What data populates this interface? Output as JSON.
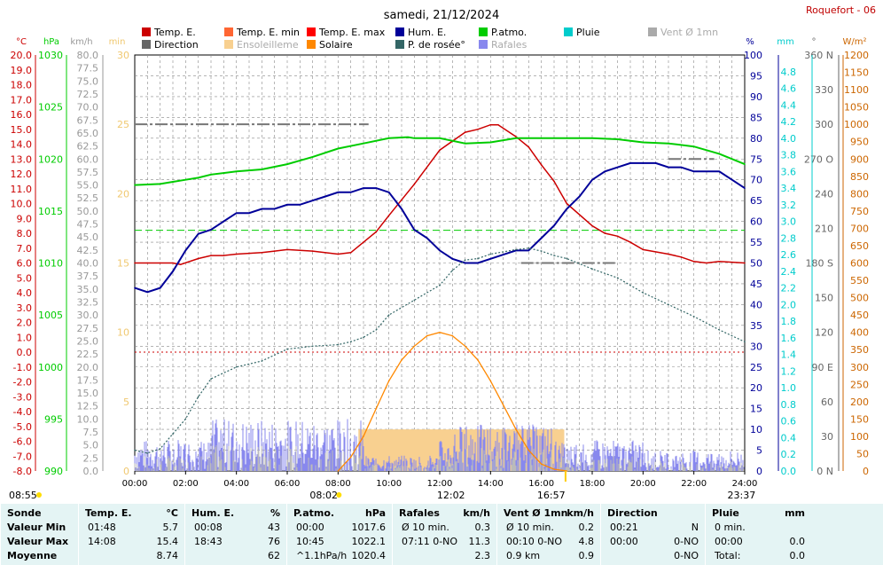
{
  "site_label": "Roquefort - 06",
  "chart_data": {
    "type": "line",
    "title": "samedi, 21/12/2024",
    "x_ticks": [
      "00:00",
      "02:00",
      "04:00",
      "06:00",
      "08:00",
      "10:00",
      "12:00",
      "14:00",
      "16:00",
      "18:00",
      "20:00",
      "22:00",
      "24:00"
    ],
    "x_range_hours": [
      0,
      24
    ],
    "grid": true,
    "axes": {
      "temp": {
        "unit": "°C",
        "color": "#cc0000",
        "range": [
          -8,
          20
        ],
        "ticks": [
          "20.0",
          "19.0",
          "18.0",
          "17.0",
          "16.0",
          "15.0",
          "14.0",
          "13.0",
          "12.0",
          "11.0",
          "10.0",
          "9.0",
          "8.0",
          "7.0",
          "6.0",
          "5.0",
          "4.0",
          "3.0",
          "2.0",
          "1.0",
          "0.0",
          "-1.0",
          "-2.0",
          "-3.0",
          "-4.0",
          "-5.0",
          "-6.0",
          "-7.0",
          "-8.0"
        ]
      },
      "pressure": {
        "unit": "hPa",
        "color": "#00cc00",
        "range": [
          990,
          1030
        ],
        "ticks": [
          "1030",
          "1025",
          "1020",
          "1015",
          "1010",
          "1005",
          "1000",
          "995",
          "990"
        ]
      },
      "wind": {
        "unit": "km/h",
        "color": "#999999",
        "range": [
          0,
          80
        ],
        "ticks": [
          "80.0",
          "77.5",
          "75.0",
          "72.5",
          "70.0",
          "67.5",
          "65.0",
          "62.5",
          "60.0",
          "57.5",
          "55.0",
          "52.5",
          "50.0",
          "47.5",
          "45.0",
          "42.5",
          "40.0",
          "37.5",
          "35.0",
          "32.5",
          "30.0",
          "27.5",
          "25.0",
          "22.5",
          "20.0",
          "17.5",
          "15.0",
          "12.5",
          "10.0",
          "7.5",
          "5.0",
          "2.5",
          "0.0"
        ]
      },
      "sun_min": {
        "unit": "min",
        "color": "#f0c870",
        "range": [
          0,
          30
        ],
        "ticks": [
          "30",
          "25",
          "20",
          "15",
          "10",
          "5",
          "0"
        ]
      },
      "humidity": {
        "unit": "%",
        "color": "#000099",
        "range": [
          0,
          100
        ],
        "ticks": [
          "100",
          "95",
          "90",
          "85",
          "80",
          "75",
          "70",
          "65",
          "60",
          "55",
          "50",
          "45",
          "40",
          "35",
          "30",
          "25",
          "20",
          "15",
          "10",
          "5",
          "0"
        ]
      },
      "rain": {
        "unit": "mm",
        "color": "#00cccc",
        "range": [
          0,
          5
        ],
        "ticks": [
          "4.8",
          "4.6",
          "4.4",
          "4.2",
          "4.0",
          "3.8",
          "3.6",
          "3.4",
          "3.2",
          "3.0",
          "2.8",
          "2.6",
          "2.4",
          "2.2",
          "2.0",
          "1.8",
          "1.6",
          "1.4",
          "1.2",
          "1.0",
          "0.8",
          "0.6",
          "0.4",
          "0.2",
          "0.0"
        ]
      },
      "direction": {
        "unit": "°",
        "color": "#666666",
        "range": [
          0,
          360
        ],
        "ticks": [
          "360 N",
          "330",
          "300",
          "270 O",
          "240",
          "210",
          "180 S",
          "150",
          "120",
          "90 E",
          "60",
          "30",
          "0 N"
        ]
      },
      "solar": {
        "unit": "W/m²",
        "color": "#cc6600",
        "range": [
          0,
          1200
        ],
        "ticks": [
          "1200",
          "1150",
          "1100",
          "1050",
          "1000",
          "950",
          "900",
          "850",
          "800",
          "750",
          "700",
          "650",
          "600",
          "550",
          "500",
          "450",
          "400",
          "350",
          "300",
          "250",
          "200",
          "150",
          "100",
          "50",
          "0"
        ]
      }
    },
    "legend": [
      {
        "label": "Temp. E.",
        "color": "#cc0000"
      },
      {
        "label": "Temp. E. min",
        "color": "#ff6633"
      },
      {
        "label": "Temp. E. max",
        "color": "#ff0000"
      },
      {
        "label": "Hum. E.",
        "color": "#000099"
      },
      {
        "label": "P.atmo.",
        "color": "#00cc00"
      },
      {
        "label": "Pluie",
        "color": "#00cccc"
      },
      {
        "label": "Vent Ø 1mn",
        "color": "#aaaaaa"
      },
      {
        "label": "Direction",
        "color": "#666666"
      },
      {
        "label": "Ensoleilleme",
        "color": "#f8d090"
      },
      {
        "label": "Solaire",
        "color": "#ff8800"
      },
      {
        "label": "P. de rosée°",
        "color": "#336666"
      },
      {
        "label": "Rafales",
        "color": "#8888ee"
      }
    ],
    "series": [
      {
        "name": "Temp. E.",
        "axis": "temp",
        "color": "#cc0000",
        "x": [
          0,
          0.5,
          1,
          1.5,
          1.8,
          2.5,
          3,
          3.5,
          4,
          5,
          5.5,
          6,
          7,
          8,
          8.5,
          9,
          9.5,
          10,
          11,
          12,
          13,
          13.5,
          14,
          14.3,
          15,
          15.5,
          16,
          16.5,
          17,
          18,
          18.5,
          19,
          19.5,
          20,
          21,
          21.5,
          22,
          22.5,
          23,
          24
        ],
        "y": [
          6.0,
          6.0,
          6.0,
          6.0,
          5.9,
          6.3,
          6.5,
          6.5,
          6.6,
          6.7,
          6.8,
          6.9,
          6.8,
          6.6,
          6.7,
          7.4,
          8.1,
          9.2,
          11.3,
          13.6,
          14.8,
          15.0,
          15.3,
          15.3,
          14.5,
          13.8,
          12.6,
          11.5,
          10.0,
          8.5,
          8.0,
          7.8,
          7.4,
          6.9,
          6.6,
          6.4,
          6.1,
          6.0,
          6.1,
          6.0
        ]
      },
      {
        "name": "Hum. E.",
        "axis": "humidity",
        "color": "#000099",
        "x": [
          0,
          0.5,
          1,
          1.5,
          2,
          2.5,
          3,
          3.5,
          4,
          4.5,
          5,
          5.5,
          6,
          6.5,
          7,
          7.5,
          8,
          8.5,
          9,
          9.5,
          10,
          10.5,
          11,
          11.5,
          12,
          12.5,
          13,
          13.5,
          14,
          14.5,
          15,
          15.5,
          16,
          16.5,
          17,
          17.5,
          18,
          18.5,
          19,
          19.5,
          20,
          20.5,
          21,
          21.5,
          22,
          22.5,
          23,
          23.5,
          24
        ],
        "y": [
          44,
          43,
          44,
          48,
          53,
          57,
          58,
          60,
          62,
          62,
          63,
          63,
          64,
          64,
          65,
          66,
          67,
          67,
          68,
          68,
          67,
          63,
          58,
          56,
          53,
          51,
          50,
          50,
          51,
          52,
          53,
          53,
          56,
          59,
          63,
          66,
          70,
          72,
          73,
          74,
          74,
          74,
          73,
          73,
          72,
          72,
          72,
          70,
          68
        ]
      },
      {
        "name": "P.atmo.",
        "axis": "pressure",
        "color": "#00cc00",
        "x": [
          0,
          1,
          1.5,
          2,
          2.5,
          3,
          4,
          5,
          6,
          7,
          8,
          9,
          10,
          10.75,
          11,
          12,
          13,
          14,
          15,
          16,
          17,
          18,
          19,
          20,
          21,
          22,
          23,
          24
        ],
        "y": [
          1017.5,
          1017.6,
          1017.8,
          1018.0,
          1018.2,
          1018.5,
          1018.8,
          1019.0,
          1019.5,
          1020.2,
          1021.0,
          1021.5,
          1022.0,
          1022.1,
          1022.0,
          1022.0,
          1021.5,
          1021.6,
          1022.0,
          1022.0,
          1022.0,
          1022.0,
          1021.9,
          1021.6,
          1021.5,
          1021.2,
          1020.5,
          1019.5
        ]
      },
      {
        "name": "P. de rosée°",
        "axis": "temp",
        "color": "#336666",
        "x": [
          0,
          0.5,
          1,
          1.5,
          2,
          2.5,
          3,
          4,
          5,
          6,
          7,
          8,
          8.5,
          9,
          9.5,
          10,
          11,
          12,
          12.5,
          13,
          13.5,
          14,
          15,
          15.5,
          16,
          16.5,
          17,
          18,
          19,
          20,
          21,
          22,
          23,
          24
        ],
        "y": [
          -6.6,
          -6.8,
          -6.5,
          -5.5,
          -4.5,
          -3.0,
          -1.8,
          -1.0,
          -0.6,
          0.2,
          0.4,
          0.5,
          0.7,
          1.0,
          1.5,
          2.5,
          3.5,
          4.5,
          5.5,
          6.2,
          6.3,
          6.6,
          6.9,
          7.0,
          6.8,
          6.5,
          6.3,
          5.6,
          5.0,
          4.0,
          3.2,
          2.4,
          1.5,
          0.7
        ]
      },
      {
        "name": "Solaire",
        "axis": "solar",
        "color": "#ff8800",
        "x": [
          8.0,
          8.5,
          9,
          9.5,
          10,
          10.5,
          11,
          11.5,
          12,
          12.5,
          13,
          13.5,
          14,
          14.5,
          15,
          15.5,
          16,
          16.5,
          17.0
        ],
        "y": [
          0,
          40,
          100,
          180,
          260,
          320,
          360,
          390,
          400,
          390,
          360,
          320,
          260,
          190,
          120,
          60,
          20,
          5,
          0
        ]
      }
    ],
    "reference_lines": [
      {
        "axis": "temp",
        "value": 8.2,
        "color": "#00cc00",
        "style": "dashed"
      },
      {
        "axis": "temp",
        "value": 0.0,
        "color": "#cc0000",
        "style": "dotted"
      }
    ],
    "direction_segments": [
      {
        "x_start": 0,
        "x_end": 9.2,
        "value": 300
      },
      {
        "x_start": 15.2,
        "x_end": 19.0,
        "value": 180
      },
      {
        "x_start": 21.0,
        "x_end": 22.8,
        "value": 270
      }
    ],
    "sunshine_band": {
      "x_start": 8.8,
      "x_end": 16.9,
      "band": [
        0,
        3
      ]
    },
    "sunrise_marker": "08:02",
    "solar_noon_marker": "12:02",
    "sunset_marker": "16:57",
    "moonrise_marker": "08:55",
    "moonset_marker": "23:37"
  },
  "stats_table": {
    "columns": [
      {
        "header": "Sonde",
        "unit": "",
        "rows": [
          "Valeur Min",
          "Valeur Max",
          "Moyenne"
        ]
      },
      {
        "header": "Temp. E.",
        "unit": "°C",
        "rows": [
          [
            "01:48",
            "5.7"
          ],
          [
            "14:08",
            "15.4"
          ],
          [
            "",
            "8.74"
          ]
        ]
      },
      {
        "header": "Hum. E.",
        "unit": "%",
        "rows": [
          [
            "00:08",
            "43"
          ],
          [
            "18:43",
            "76"
          ],
          [
            "",
            "62"
          ]
        ]
      },
      {
        "header": "P.atmo.",
        "unit": "hPa",
        "rows": [
          [
            "00:00",
            "1017.6"
          ],
          [
            "10:45",
            "1022.1"
          ],
          [
            "^1.1hPa/h",
            "1020.4"
          ]
        ]
      },
      {
        "header": "Rafales",
        "unit": "km/h",
        "rows": [
          [
            "Ø 10 min.",
            "0.3"
          ],
          [
            "07:11  0-NO",
            "11.3"
          ],
          [
            "",
            "2.3"
          ]
        ]
      },
      {
        "header": "Vent Ø 1mn",
        "unit": "km/h",
        "rows": [
          [
            "Ø 10 min.",
            "0.2"
          ],
          [
            "00:10  0-NO",
            "4.8"
          ],
          [
            "0.9 km",
            "0.9"
          ]
        ]
      },
      {
        "header": "Direction",
        "unit": "",
        "rows": [
          [
            "00:21",
            "N"
          ],
          [
            "00:00",
            "0-NO"
          ],
          [
            "",
            "0-NO"
          ]
        ]
      },
      {
        "header": "Pluie",
        "unit": "mm",
        "rows": [
          [
            "0 min.",
            ""
          ],
          [
            "00:00",
            "0.0"
          ],
          [
            "Total:",
            "0.0"
          ]
        ]
      }
    ]
  }
}
